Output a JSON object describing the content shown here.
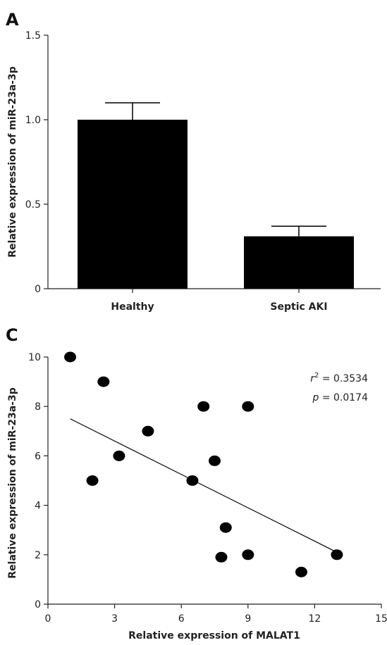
{
  "chart_data": [
    {
      "type": "bar",
      "panel_label": "A",
      "categories": [
        "Healthy",
        "Septic AKI"
      ],
      "values": [
        1.0,
        0.31
      ],
      "error": [
        0.1,
        0.06
      ],
      "ylabel": "Relative expression of miR-23a-3p",
      "xlabel": "",
      "ylim": [
        0,
        1.5
      ],
      "yticks": [
        "0",
        "0.5",
        "1.0",
        "1.5"
      ],
      "ytick_values": [
        0,
        0.5,
        1.0,
        1.5
      ],
      "bar_color": "#000000",
      "grid": false
    },
    {
      "type": "scatter",
      "panel_label": "C",
      "points": [
        {
          "x": 1.0,
          "y": 10.0
        },
        {
          "x": 2.5,
          "y": 9.0
        },
        {
          "x": 2.0,
          "y": 5.0
        },
        {
          "x": 3.2,
          "y": 6.0
        },
        {
          "x": 4.5,
          "y": 7.0
        },
        {
          "x": 6.5,
          "y": 5.0
        },
        {
          "x": 7.0,
          "y": 8.0
        },
        {
          "x": 7.5,
          "y": 5.8
        },
        {
          "x": 9.0,
          "y": 8.0
        },
        {
          "x": 8.0,
          "y": 3.1
        },
        {
          "x": 7.8,
          "y": 1.9
        },
        {
          "x": 9.0,
          "y": 2.0
        },
        {
          "x": 11.4,
          "y": 1.3
        },
        {
          "x": 13.0,
          "y": 2.0
        }
      ],
      "fit_line": {
        "x": [
          1.0,
          13.0
        ],
        "y": [
          7.5,
          2.1
        ]
      },
      "xlabel": "Relative expression of MALAT1",
      "ylabel": "Relative expression of miR-23a-3p",
      "xlim": [
        0,
        15
      ],
      "ylim": [
        0,
        10
      ],
      "xticks": [
        "0",
        "3",
        "6",
        "9",
        "12",
        "15"
      ],
      "xtick_values": [
        0,
        3,
        6,
        9,
        12,
        15
      ],
      "yticks": [
        "0",
        "2",
        "4",
        "6",
        "8",
        "10"
      ],
      "ytick_values": [
        0,
        2,
        4,
        6,
        8,
        10
      ],
      "annotation": {
        "r_symbol": "r",
        "r_sup": "2",
        "r_value": " = 0.3534",
        "p_symbol": "p",
        "p_value": " = 0.0174"
      },
      "marker_color": "#000000",
      "grid": false
    }
  ]
}
